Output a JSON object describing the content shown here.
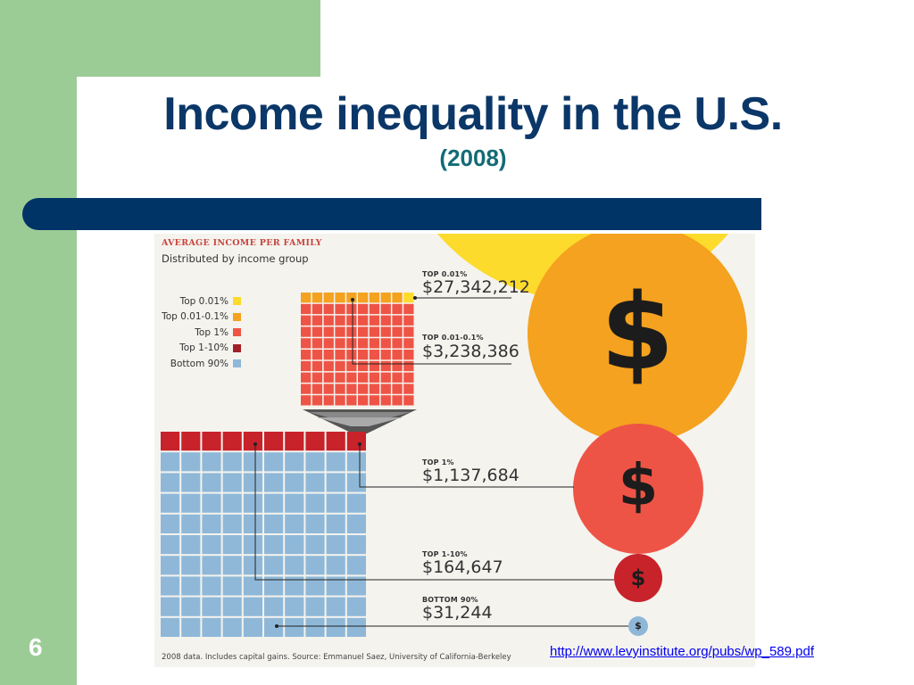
{
  "slide": {
    "title": "Income inequality in the U.S.",
    "subtitle": "(2008)",
    "number": "6",
    "link_text": "http://www.levyinstitute.org/pubs/wp_589.pdf"
  },
  "infographic": {
    "heading": "AVERAGE INCOME PER FAMILY",
    "subheading": "Distributed by income group",
    "source": "2008 data. Includes capital gains. Source: Emmanuel Saez, University of California-Berkeley",
    "dollar_symbol": "$",
    "legend": [
      {
        "label": "Top 0.01%",
        "color": "#fddb2c"
      },
      {
        "label": "Top 0.01-0.1%",
        "color": "#f4a21f"
      },
      {
        "label": "Top 1%",
        "color": "#ee5446"
      },
      {
        "label": "Top 1-10%",
        "color": "#a11f26"
      },
      {
        "label": "Bottom 90%",
        "color": "#8fb8d8"
      }
    ],
    "values": [
      {
        "label": "TOP 0.01%",
        "amount": "$27,342,212"
      },
      {
        "label": "TOP 0.01-0.1%",
        "amount": "$3,238,386"
      },
      {
        "label": "TOP 1%",
        "amount": "$1,137,684"
      },
      {
        "label": "TOP 1-10%",
        "amount": "$164,647"
      },
      {
        "label": "BOTTOM 90%",
        "amount": "$31,244"
      }
    ]
  },
  "colors": {
    "green": "#9ccc96",
    "navy": "#003366",
    "title": "#0b3768",
    "subtitle": "#136b76"
  }
}
